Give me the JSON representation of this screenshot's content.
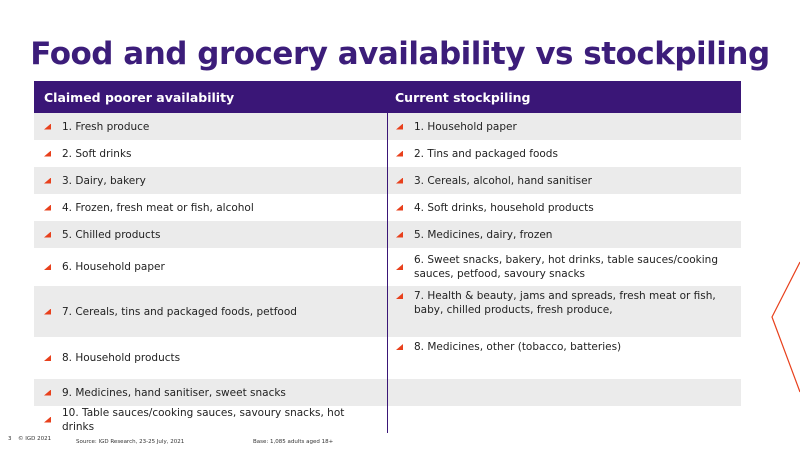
{
  "title": "Food and grocery availability vs stockpiling",
  "table": {
    "left_header": "Claimed poorer availability",
    "right_header": "Current stockpiling",
    "rows": [
      {
        "left": "1. Fresh produce",
        "right": "1. Household paper"
      },
      {
        "left": "2. Soft drinks",
        "right": "2.  Tins and packaged foods"
      },
      {
        "left": "3. Dairy, bakery",
        "right": "3. Cereals, alcohol, hand sanitiser"
      },
      {
        "left": "4. Frozen, fresh meat or fish, alcohol",
        "right": "4. Soft drinks, household products"
      },
      {
        "left": "5. Chilled products",
        "right": "5. Medicines, dairy, frozen"
      },
      {
        "left": "6. Household paper",
        "right": "6. Sweet snacks, bakery, hot drinks, table sauces/cooking sauces, petfood,  savoury snacks"
      },
      {
        "left": "7. Cereals, tins and packaged foods, petfood",
        "right": "7. Health & beauty, jams and spreads, fresh meat or fish, baby, chilled products, fresh produce,"
      },
      {
        "left": "8. Household products",
        "right": "8. Medicines, other (tobacco,  batteries)"
      },
      {
        "left": "9. Medicines, hand sanitiser, sweet snacks",
        "right": ""
      },
      {
        "left": "10. Table sauces/cooking sauces, savoury snacks, hot drinks",
        "right": ""
      }
    ]
  },
  "footer": {
    "page_number": "3",
    "copyright": "© IGD 2021",
    "source": "Source: IGD Research, 23-25 July, 2021",
    "base": "Base: 1,085 adults aged 18+"
  },
  "colors": {
    "title": "#3c1d7a",
    "header_bg": "#3a1677",
    "row_shade": "#ebebeb",
    "bullet": "#e8401c",
    "accent_line": "#e8401c"
  }
}
